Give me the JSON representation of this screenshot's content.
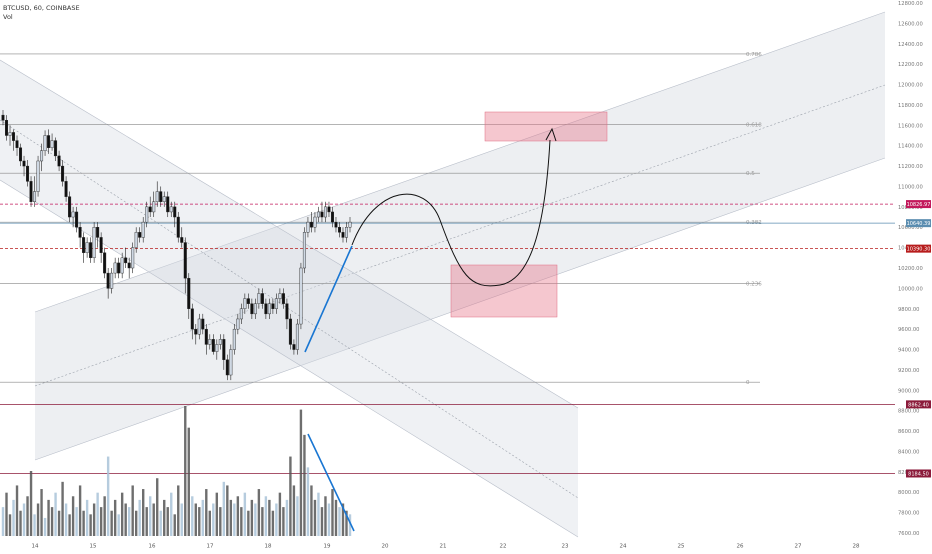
{
  "header": {
    "symbol": "BTCUSD, 60, COINBASE",
    "volume_label": "Vol"
  },
  "chart_data": {
    "type": "candlestick",
    "symbol": "BTCUSD",
    "interval": "60",
    "exchange": "COINBASE",
    "y_axis": {
      "min": 7600,
      "max": 12800,
      "ticks": [
        "7600.00",
        "7800.00",
        "8000.00",
        "8200.00",
        "8400.00",
        "8600.00",
        "8800.00",
        "9000.00",
        "9200.00",
        "9400.00",
        "9600.00",
        "9800.00",
        "10000.00",
        "10200.00",
        "10400.00",
        "10600.00",
        "10800.00",
        "11000.00",
        "11200.00",
        "11400.00",
        "11600.00",
        "11800.00",
        "12000.00",
        "12200.00",
        "12400.00",
        "12600.00",
        "12800.00"
      ]
    },
    "x_axis": {
      "day_labels": [
        "14",
        "15",
        "16",
        "17",
        "18",
        "19",
        "20",
        "21",
        "22",
        "23",
        "24",
        "25",
        "26",
        "27",
        "28"
      ]
    },
    "price_tags": [
      {
        "label": "10826.97",
        "value": 10827,
        "color": "#c2185b",
        "dashed": true
      },
      {
        "label": "10640.39",
        "value": 10640,
        "color": "#5b8db0",
        "dashed": false
      },
      {
        "label": "10390.30",
        "value": 10390,
        "color": "#b71c1c",
        "dashed": true
      },
      {
        "label": "8862.40",
        "value": 8862,
        "color": "#8b1a3a",
        "dashed": false
      },
      {
        "label": "8184.50",
        "value": 8184,
        "color": "#8b1a3a",
        "dashed": false
      }
    ],
    "fib_levels": [
      {
        "label": "0.786",
        "value": 12300
      },
      {
        "label": "0.618",
        "value": 11610
      },
      {
        "label": "0.5",
        "value": 11130
      },
      {
        "label": "0.382",
        "value": 10650
      },
      {
        "label": "0.236",
        "value": 10050
      },
      {
        "label": "0",
        "value": 9080
      }
    ],
    "candles": [
      [
        11700,
        11650,
        11600,
        11750
      ],
      [
        11650,
        11500,
        11450,
        11700
      ],
      [
        11500,
        11530,
        11400,
        11600
      ],
      [
        11530,
        11450,
        11350,
        11560
      ],
      [
        11450,
        11380,
        11300,
        11500
      ],
      [
        11380,
        11250,
        11200,
        11420
      ],
      [
        11250,
        11200,
        11100,
        11300
      ],
      [
        11200,
        11050,
        11000,
        11260
      ],
      [
        11050,
        10850,
        10800,
        11100
      ],
      [
        10850,
        10950,
        10800,
        11100
      ],
      [
        10950,
        11250,
        10900,
        11300
      ],
      [
        11250,
        11350,
        11150,
        11420
      ],
      [
        11350,
        11500,
        11300,
        11550
      ],
      [
        11500,
        11380,
        11320,
        11560
      ],
      [
        11380,
        11450,
        11350,
        11520
      ],
      [
        11450,
        11300,
        11250,
        11480
      ],
      [
        11300,
        11200,
        11150,
        11350
      ],
      [
        11200,
        11050,
        11000,
        11260
      ],
      [
        11050,
        10900,
        10850,
        11100
      ],
      [
        10900,
        10700,
        10650,
        10950
      ],
      [
        10700,
        10750,
        10600,
        10800
      ],
      [
        10750,
        10600,
        10550,
        10800
      ],
      [
        10600,
        10500,
        10400,
        10650
      ],
      [
        10500,
        10350,
        10250,
        10550
      ],
      [
        10350,
        10450,
        10300,
        10500
      ],
      [
        10450,
        10300,
        10250,
        10500
      ],
      [
        10300,
        10600,
        10250,
        10650
      ],
      [
        10600,
        10500,
        10400,
        10650
      ],
      [
        10500,
        10350,
        10250,
        10550
      ],
      [
        10350,
        10150,
        10100,
        10400
      ],
      [
        10150,
        10000,
        9900,
        10200
      ],
      [
        10000,
        10150,
        9950,
        10200
      ],
      [
        10150,
        10250,
        10100,
        10300
      ],
      [
        10250,
        10150,
        10100,
        10300
      ],
      [
        10150,
        10300,
        10100,
        10350
      ],
      [
        10300,
        10250,
        10200,
        10400
      ],
      [
        10250,
        10200,
        10100,
        10300
      ],
      [
        10200,
        10400,
        10150,
        10450
      ],
      [
        10400,
        10550,
        10350,
        10600
      ],
      [
        10550,
        10500,
        10450,
        10600
      ],
      [
        10500,
        10650,
        10450,
        10700
      ],
      [
        10650,
        10800,
        10600,
        10850
      ],
      [
        10800,
        10750,
        10700,
        10900
      ],
      [
        10750,
        10850,
        10700,
        10950
      ],
      [
        10850,
        10950,
        10800,
        11050
      ],
      [
        10950,
        10850,
        10800,
        11000
      ],
      [
        10850,
        10900,
        10800,
        10950
      ],
      [
        10900,
        10750,
        10700,
        10950
      ],
      [
        10750,
        10800,
        10700,
        10850
      ],
      [
        10800,
        10700,
        10600,
        10850
      ],
      [
        10700,
        10500,
        10450,
        10750
      ],
      [
        10500,
        10450,
        10400,
        10600
      ],
      [
        10450,
        10100,
        9950,
        10500
      ],
      [
        10100,
        9800,
        9700,
        10150
      ],
      [
        9800,
        9600,
        9500,
        9850
      ],
      [
        9600,
        9550,
        9450,
        9650
      ],
      [
        9550,
        9700,
        9500,
        9750
      ],
      [
        9700,
        9600,
        9550,
        9750
      ],
      [
        9600,
        9450,
        9350,
        9650
      ],
      [
        9450,
        9500,
        9400,
        9550
      ],
      [
        9500,
        9380,
        9350,
        9550
      ],
      [
        9380,
        9450,
        9300,
        9500
      ],
      [
        9450,
        9500,
        9400,
        9550
      ],
      [
        9500,
        9300,
        9200,
        9550
      ],
      [
        9300,
        9150,
        9100,
        9350
      ],
      [
        9150,
        9400,
        9100,
        9450
      ],
      [
        9400,
        9600,
        9350,
        9650
      ],
      [
        9600,
        9700,
        9550,
        9750
      ],
      [
        9700,
        9800,
        9650,
        9850
      ],
      [
        9800,
        9900,
        9750,
        9950
      ],
      [
        9900,
        9850,
        9800,
        9950
      ],
      [
        9850,
        9750,
        9700,
        9900
      ],
      [
        9750,
        9850,
        9700,
        9900
      ],
      [
        9850,
        9950,
        9800,
        10000
      ],
      [
        9950,
        9850,
        9800,
        10000
      ],
      [
        9850,
        9750,
        9700,
        9900
      ],
      [
        9750,
        9850,
        9700,
        9900
      ],
      [
        9850,
        9800,
        9750,
        9900
      ],
      [
        9800,
        9900,
        9750,
        9950
      ],
      [
        9900,
        9950,
        9850,
        10000
      ],
      [
        9950,
        9850,
        9800,
        10000
      ],
      [
        9850,
        9700,
        9600,
        9900
      ],
      [
        9700,
        9450,
        9400,
        9750
      ],
      [
        9450,
        9400,
        9350,
        9500
      ],
      [
        9400,
        9650,
        9350,
        9700
      ],
      [
        9650,
        10200,
        9600,
        10250
      ],
      [
        10200,
        10550,
        10150,
        10600
      ],
      [
        10550,
        10650,
        10500,
        10700
      ],
      [
        10650,
        10600,
        10550,
        10750
      ],
      [
        10600,
        10700,
        10550,
        10750
      ],
      [
        10700,
        10750,
        10650,
        10800
      ],
      [
        10750,
        10700,
        10650,
        10850
      ],
      [
        10700,
        10800,
        10650,
        10850
      ],
      [
        10800,
        10750,
        10700,
        10850
      ],
      [
        10750,
        10650,
        10600,
        10800
      ],
      [
        10650,
        10600,
        10550,
        10700
      ],
      [
        10600,
        10550,
        10500,
        10650
      ],
      [
        10550,
        10500,
        10450,
        10600
      ],
      [
        10500,
        10600,
        10450,
        10650
      ],
      [
        10600,
        10650,
        10550,
        10700
      ]
    ],
    "volumes": [
      8,
      12,
      6,
      10,
      14,
      7,
      9,
      11,
      18,
      6,
      9,
      13,
      5,
      10,
      8,
      12,
      7,
      15,
      9,
      6,
      11,
      8,
      14,
      7,
      10,
      6,
      9,
      12,
      8,
      11,
      22,
      7,
      10,
      6,
      12,
      9,
      8,
      14,
      7,
      10,
      13,
      8,
      11,
      9,
      16,
      7,
      10,
      8,
      12,
      6,
      14,
      9,
      36,
      30,
      11,
      9,
      8,
      10,
      13,
      7,
      9,
      12,
      8,
      15,
      14,
      10,
      9,
      11,
      8,
      12,
      7,
      10,
      9,
      13,
      8,
      11,
      10,
      7,
      9,
      12,
      8,
      10,
      22,
      14,
      11,
      35,
      28,
      19,
      14,
      10,
      12,
      8,
      11,
      9,
      13,
      10,
      8,
      9,
      7,
      6
    ]
  }
}
